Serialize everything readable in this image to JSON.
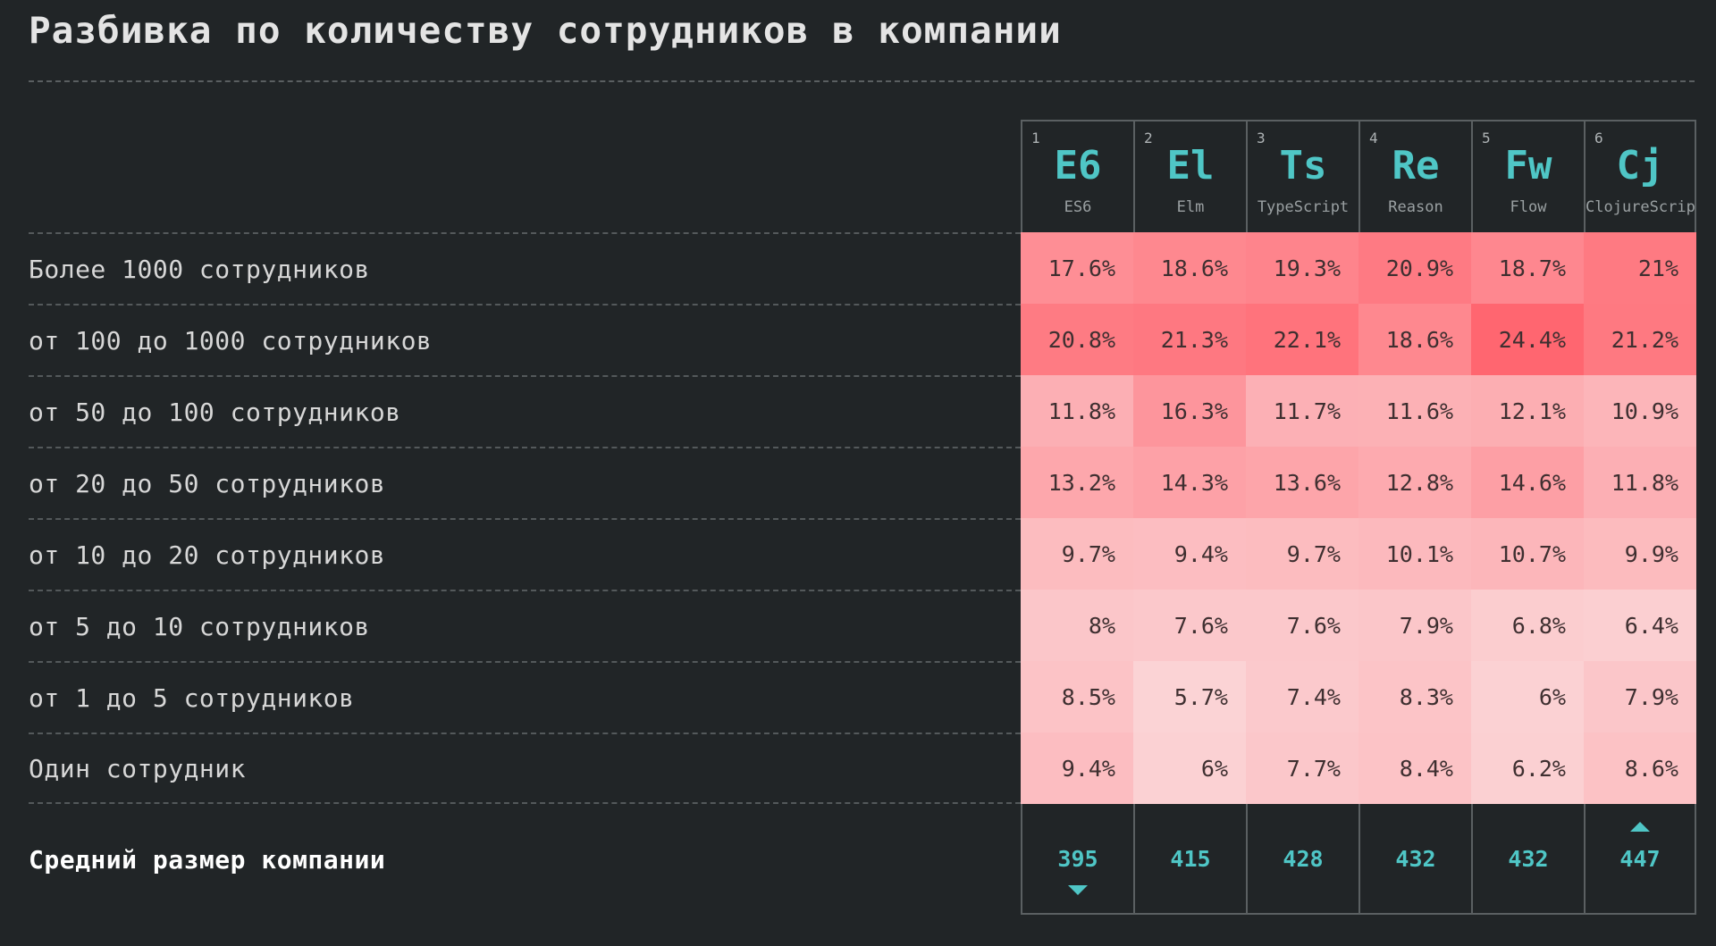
{
  "title": "Разбивка по количеству сотрудников в компании",
  "colors": {
    "background": "#212527",
    "accent": "#4fc6c6",
    "heat_low": "#fbd3d5",
    "heat_high": "#ff6670"
  },
  "chart_data": {
    "type": "heatmap",
    "title": "Разбивка по количеству сотрудников в компании",
    "columns": [
      {
        "index": "1",
        "abbr": "E6",
        "name": "ES6"
      },
      {
        "index": "2",
        "abbr": "El",
        "name": "Elm"
      },
      {
        "index": "3",
        "abbr": "Ts",
        "name": "TypeScript"
      },
      {
        "index": "4",
        "abbr": "Re",
        "name": "Reason"
      },
      {
        "index": "5",
        "abbr": "Fw",
        "name": "Flow"
      },
      {
        "index": "6",
        "abbr": "Cj",
        "name": "ClojureScript"
      }
    ],
    "rows": [
      {
        "label": "Более 1000 сотрудников",
        "values": [
          17.6,
          18.6,
          19.3,
          20.9,
          18.7,
          21
        ],
        "display": [
          "17.6%",
          "18.6%",
          "19.3%",
          "20.9%",
          "18.7%",
          "21%"
        ]
      },
      {
        "label": "от 100 до 1000 сотрудников",
        "values": [
          20.8,
          21.3,
          22.1,
          18.6,
          24.4,
          21.2
        ],
        "display": [
          "20.8%",
          "21.3%",
          "22.1%",
          "18.6%",
          "24.4%",
          "21.2%"
        ]
      },
      {
        "label": "от 50 до 100 сотрудников",
        "values": [
          11.8,
          16.3,
          11.7,
          11.6,
          12.1,
          10.9
        ],
        "display": [
          "11.8%",
          "16.3%",
          "11.7%",
          "11.6%",
          "12.1%",
          "10.9%"
        ]
      },
      {
        "label": "от 20 до 50 сотрудников",
        "values": [
          13.2,
          14.3,
          13.6,
          12.8,
          14.6,
          11.8
        ],
        "display": [
          "13.2%",
          "14.3%",
          "13.6%",
          "12.8%",
          "14.6%",
          "11.8%"
        ]
      },
      {
        "label": "от 10 до 20 сотрудников",
        "values": [
          9.7,
          9.4,
          9.7,
          10.1,
          10.7,
          9.9
        ],
        "display": [
          "9.7%",
          "9.4%",
          "9.7%",
          "10.1%",
          "10.7%",
          "9.9%"
        ]
      },
      {
        "label": "от 5 до 10 сотрудников",
        "values": [
          8,
          7.6,
          7.6,
          7.9,
          6.8,
          6.4
        ],
        "display": [
          "8%",
          "7.6%",
          "7.6%",
          "7.9%",
          "6.8%",
          "6.4%"
        ]
      },
      {
        "label": "от 1 до 5 сотрудников",
        "values": [
          8.5,
          5.7,
          7.4,
          8.3,
          6,
          7.9
        ],
        "display": [
          "8.5%",
          "5.7%",
          "7.4%",
          "8.3%",
          "6%",
          "7.9%"
        ]
      },
      {
        "label": "Один сотрудник",
        "values": [
          9.4,
          6,
          7.7,
          8.4,
          6.2,
          8.6
        ],
        "display": [
          "9.4%",
          "6%",
          "7.7%",
          "8.4%",
          "6.2%",
          "8.6%"
        ]
      }
    ],
    "value_range": [
      5.7,
      24.4
    ],
    "summary": {
      "label": "Средний размер компании",
      "values": [
        395,
        415,
        428,
        432,
        432,
        447
      ],
      "markers": {
        "min_column": 0,
        "max_column": 5
      }
    }
  }
}
